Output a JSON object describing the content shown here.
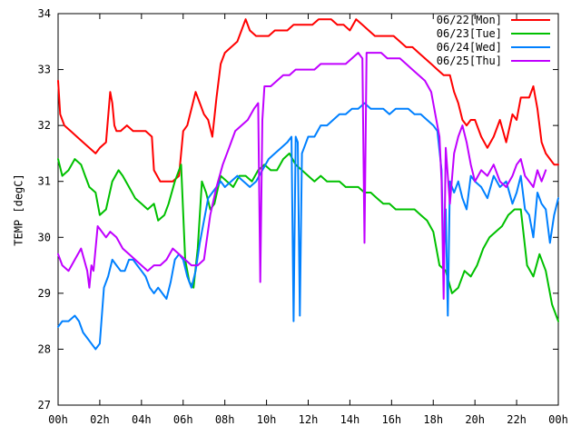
{
  "chart_data": {
    "type": "line",
    "title": "",
    "xlabel": "",
    "ylabel": "TEMP [degC]",
    "xlim": [
      0,
      24
    ],
    "ylim": [
      27,
      34
    ],
    "x_ticks": [
      {
        "value": 0,
        "label": "00h"
      },
      {
        "value": 2,
        "label": "02h"
      },
      {
        "value": 4,
        "label": "04h"
      },
      {
        "value": 6,
        "label": "06h"
      },
      {
        "value": 8,
        "label": "08h"
      },
      {
        "value": 10,
        "label": "10h"
      },
      {
        "value": 12,
        "label": "12h"
      },
      {
        "value": 14,
        "label": "14h"
      },
      {
        "value": 16,
        "label": "16h"
      },
      {
        "value": 18,
        "label": "18h"
      },
      {
        "value": 20,
        "label": "20h"
      },
      {
        "value": 22,
        "label": "22h"
      },
      {
        "value": 24,
        "label": "00h"
      }
    ],
    "y_ticks": [
      {
        "value": 27,
        "label": "27"
      },
      {
        "value": 28,
        "label": "28"
      },
      {
        "value": 29,
        "label": "29"
      },
      {
        "value": 30,
        "label": "30"
      },
      {
        "value": 31,
        "label": "31"
      },
      {
        "value": 32,
        "label": "32"
      },
      {
        "value": 33,
        "label": "33"
      },
      {
        "value": 34,
        "label": "34"
      }
    ],
    "grid": false,
    "legend_position": "top-right",
    "series": [
      {
        "name": "06/22[Mon]",
        "color": "#ff0000",
        "x": [
          0.0,
          0.1,
          0.3,
          0.6,
          0.9,
          1.2,
          1.5,
          1.8,
          2.0,
          2.3,
          2.5,
          2.6,
          2.7,
          2.8,
          3.0,
          3.3,
          3.6,
          3.9,
          4.2,
          4.5,
          4.6,
          4.9,
          5.2,
          5.5,
          5.8,
          6.0,
          6.2,
          6.4,
          6.6,
          6.8,
          7.0,
          7.2,
          7.4,
          7.6,
          7.8,
          8.0,
          8.3,
          8.6,
          8.8,
          9.0,
          9.2,
          9.5,
          9.8,
          10.1,
          10.4,
          10.7,
          11.0,
          11.3,
          11.6,
          11.9,
          12.2,
          12.5,
          12.8,
          13.1,
          13.4,
          13.7,
          14.0,
          14.3,
          14.6,
          14.9,
          15.2,
          15.5,
          15.8,
          16.1,
          16.4,
          16.7,
          17.0,
          17.3,
          17.6,
          17.9,
          18.2,
          18.5,
          18.8,
          19.0,
          19.2,
          19.4,
          19.6,
          19.8,
          20.0,
          20.3,
          20.6,
          20.9,
          21.2,
          21.5,
          21.8,
          22.0,
          22.2,
          22.4,
          22.6,
          22.8,
          23.0,
          23.2,
          23.4,
          23.6,
          23.8,
          24.0
        ],
        "values": [
          32.8,
          32.2,
          32.0,
          31.9,
          31.8,
          31.7,
          31.6,
          31.5,
          31.6,
          31.7,
          32.6,
          32.4,
          32.0,
          31.9,
          31.9,
          32.0,
          31.9,
          31.9,
          31.9,
          31.8,
          31.2,
          31.0,
          31.0,
          31.0,
          31.1,
          31.9,
          32.0,
          32.3,
          32.6,
          32.4,
          32.2,
          32.1,
          31.8,
          32.5,
          33.1,
          33.3,
          33.4,
          33.5,
          33.7,
          33.9,
          33.7,
          33.6,
          33.6,
          33.6,
          33.7,
          33.7,
          33.7,
          33.8,
          33.8,
          33.8,
          33.8,
          33.9,
          33.9,
          33.9,
          33.8,
          33.8,
          33.7,
          33.9,
          33.8,
          33.7,
          33.6,
          33.6,
          33.6,
          33.6,
          33.5,
          33.4,
          33.4,
          33.3,
          33.2,
          33.1,
          33.0,
          32.9,
          32.9,
          32.6,
          32.4,
          32.1,
          32.0,
          32.1,
          32.1,
          31.8,
          31.6,
          31.8,
          32.1,
          31.7,
          32.2,
          32.1,
          32.5,
          32.5,
          32.5,
          32.7,
          32.3,
          31.7,
          31.5,
          31.4,
          31.3,
          31.3
        ]
      },
      {
        "name": "06/23[Tue]",
        "color": "#00c000",
        "x": [
          0.0,
          0.2,
          0.5,
          0.8,
          1.1,
          1.3,
          1.5,
          1.8,
          2.0,
          2.3,
          2.6,
          2.9,
          3.1,
          3.4,
          3.7,
          4.0,
          4.3,
          4.6,
          4.8,
          5.1,
          5.3,
          5.6,
          5.9,
          6.1,
          6.3,
          6.5,
          6.7,
          6.9,
          7.1,
          7.3,
          7.5,
          7.8,
          8.1,
          8.4,
          8.7,
          9.0,
          9.3,
          9.6,
          9.9,
          10.2,
          10.5,
          10.8,
          11.1,
          11.4,
          11.7,
          12.0,
          12.3,
          12.6,
          12.9,
          13.2,
          13.5,
          13.8,
          14.1,
          14.4,
          14.7,
          15.0,
          15.3,
          15.6,
          15.9,
          16.2,
          16.5,
          16.8,
          17.1,
          17.4,
          17.7,
          18.0,
          18.3,
          18.6,
          18.9,
          19.2,
          19.5,
          19.8,
          20.1,
          20.4,
          20.7,
          21.0,
          21.3,
          21.6,
          21.9,
          22.2,
          22.5,
          22.8,
          23.1,
          23.4,
          23.7,
          24.0
        ],
        "values": [
          31.4,
          31.1,
          31.2,
          31.4,
          31.3,
          31.1,
          30.9,
          30.8,
          30.4,
          30.5,
          31.0,
          31.2,
          31.1,
          30.9,
          30.7,
          30.6,
          30.5,
          30.6,
          30.3,
          30.4,
          30.6,
          31.0,
          31.3,
          29.6,
          29.2,
          29.1,
          29.8,
          31.0,
          30.8,
          30.5,
          30.6,
          31.1,
          31.0,
          30.9,
          31.1,
          31.1,
          31.0,
          31.2,
          31.3,
          31.2,
          31.2,
          31.4,
          31.5,
          31.3,
          31.2,
          31.1,
          31.0,
          31.1,
          31.0,
          31.0,
          31.0,
          30.9,
          30.9,
          30.9,
          30.8,
          30.8,
          30.7,
          30.6,
          30.6,
          30.5,
          30.5,
          30.5,
          30.5,
          30.4,
          30.3,
          30.1,
          29.5,
          29.4,
          29.0,
          29.1,
          29.4,
          29.3,
          29.5,
          29.8,
          30.0,
          30.1,
          30.2,
          30.4,
          30.5,
          30.5,
          29.5,
          29.3,
          29.7,
          29.4,
          28.8,
          28.5
        ]
      },
      {
        "name": "06/24[Wed]",
        "color": "#0080ff",
        "x": [
          0.0,
          0.2,
          0.5,
          0.8,
          1.0,
          1.2,
          1.4,
          1.6,
          1.8,
          2.0,
          2.2,
          2.4,
          2.6,
          2.8,
          3.0,
          3.2,
          3.4,
          3.6,
          3.8,
          4.0,
          4.2,
          4.4,
          4.6,
          4.8,
          5.0,
          5.2,
          5.4,
          5.6,
          5.8,
          6.0,
          6.2,
          6.4,
          6.6,
          6.8,
          7.0,
          7.2,
          7.4,
          7.6,
          7.8,
          8.0,
          8.3,
          8.6,
          8.9,
          9.2,
          9.5,
          9.8,
          10.1,
          10.4,
          10.7,
          11.0,
          11.2,
          11.3,
          11.4,
          11.5,
          11.6,
          11.7,
          11.8,
          12.0,
          12.3,
          12.6,
          12.9,
          13.2,
          13.5,
          13.8,
          14.1,
          14.4,
          14.7,
          15.0,
          15.3,
          15.6,
          15.9,
          16.2,
          16.5,
          16.8,
          17.1,
          17.4,
          17.7,
          18.0,
          18.2,
          18.4,
          18.5,
          18.6,
          18.7,
          18.8,
          19.0,
          19.2,
          19.4,
          19.6,
          19.8,
          20.0,
          20.3,
          20.6,
          20.9,
          21.2,
          21.5,
          21.8,
          22.0,
          22.2,
          22.4,
          22.6,
          22.8,
          23.0,
          23.2,
          23.4,
          23.6,
          23.8,
          24.0
        ],
        "values": [
          28.4,
          28.5,
          28.5,
          28.6,
          28.5,
          28.3,
          28.2,
          28.1,
          28.0,
          28.1,
          29.1,
          29.3,
          29.6,
          29.5,
          29.4,
          29.4,
          29.6,
          29.6,
          29.5,
          29.4,
          29.3,
          29.1,
          29.0,
          29.1,
          29.0,
          28.9,
          29.2,
          29.6,
          29.7,
          29.6,
          29.3,
          29.1,
          29.4,
          29.9,
          30.3,
          30.7,
          30.8,
          30.9,
          31.0,
          30.9,
          31.0,
          31.1,
          31.0,
          30.9,
          31.0,
          31.2,
          31.4,
          31.5,
          31.6,
          31.7,
          31.8,
          28.5,
          31.8,
          31.7,
          28.6,
          31.5,
          31.6,
          31.8,
          31.8,
          32.0,
          32.0,
          32.1,
          32.2,
          32.2,
          32.3,
          32.3,
          32.4,
          32.3,
          32.3,
          32.3,
          32.2,
          32.3,
          32.3,
          32.3,
          32.2,
          32.2,
          32.1,
          32.0,
          31.9,
          31.2,
          29.5,
          30.5,
          28.6,
          31.0,
          30.8,
          31.0,
          30.7,
          30.5,
          31.1,
          31.0,
          30.9,
          30.7,
          31.1,
          30.9,
          31.0,
          30.6,
          30.8,
          31.1,
          30.5,
          30.4,
          30.0,
          30.8,
          30.6,
          30.5,
          29.9,
          30.4,
          30.7
        ]
      },
      {
        "name": "06/25[Thu]",
        "color": "#c000ff",
        "x": [
          0.0,
          0.2,
          0.5,
          0.8,
          1.1,
          1.4,
          1.5,
          1.6,
          1.7,
          1.9,
          2.1,
          2.3,
          2.5,
          2.8,
          3.1,
          3.4,
          3.7,
          4.0,
          4.3,
          4.6,
          4.9,
          5.2,
          5.5,
          5.8,
          6.1,
          6.4,
          6.7,
          7.0,
          7.3,
          7.6,
          7.9,
          8.2,
          8.5,
          8.8,
          9.1,
          9.4,
          9.6,
          9.7,
          9.8,
          9.9,
          10.2,
          10.5,
          10.8,
          11.1,
          11.4,
          11.7,
          12.0,
          12.3,
          12.6,
          12.9,
          13.2,
          13.5,
          13.8,
          14.1,
          14.4,
          14.6,
          14.7,
          14.8,
          14.9,
          15.2,
          15.5,
          15.8,
          16.1,
          16.4,
          16.7,
          17.0,
          17.3,
          17.6,
          17.9,
          18.1,
          18.3,
          18.4,
          18.5,
          18.6,
          18.7,
          18.8,
          19.0,
          19.2,
          19.4,
          19.6,
          19.8,
          20.0,
          20.3,
          20.6,
          20.9,
          21.2,
          21.5,
          21.8,
          22.0,
          22.2,
          22.4,
          22.6,
          22.8,
          23.0,
          23.2,
          23.4
        ],
        "values": [
          29.7,
          29.5,
          29.4,
          29.6,
          29.8,
          29.4,
          29.1,
          29.5,
          29.4,
          30.2,
          30.1,
          30.0,
          30.1,
          30.0,
          29.8,
          29.7,
          29.6,
          29.5,
          29.4,
          29.5,
          29.5,
          29.6,
          29.8,
          29.7,
          29.6,
          29.5,
          29.5,
          29.6,
          30.4,
          30.9,
          31.3,
          31.6,
          31.9,
          32.0,
          32.1,
          32.3,
          32.4,
          29.2,
          32.1,
          32.7,
          32.7,
          32.8,
          32.9,
          32.9,
          33.0,
          33.0,
          33.0,
          33.0,
          33.1,
          33.1,
          33.1,
          33.1,
          33.1,
          33.2,
          33.3,
          33.2,
          29.9,
          33.3,
          33.3,
          33.3,
          33.3,
          33.2,
          33.2,
          33.2,
          33.1,
          33.0,
          32.9,
          32.8,
          32.6,
          32.2,
          31.8,
          31.0,
          28.9,
          31.6,
          31.1,
          30.6,
          31.5,
          31.8,
          32.0,
          31.7,
          31.3,
          31.0,
          31.2,
          31.1,
          31.3,
          31.0,
          30.9,
          31.1,
          31.3,
          31.4,
          31.1,
          31.0,
          30.9,
          31.2,
          31.0,
          31.2
        ]
      }
    ]
  }
}
